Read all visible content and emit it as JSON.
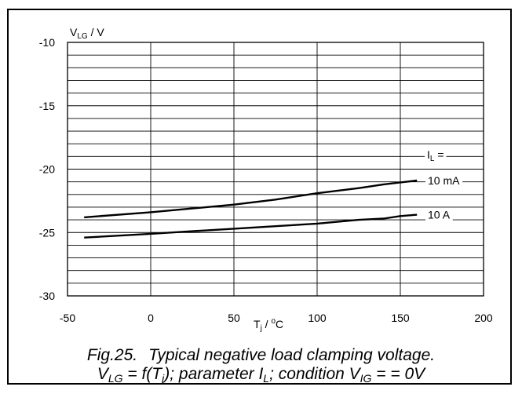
{
  "chart_data": {
    "type": "line",
    "xlim": [
      -50,
      200
    ],
    "ylim": [
      -30,
      -10
    ],
    "xticks": [
      "-50",
      "0",
      "50",
      "100",
      "150",
      "200"
    ],
    "yticks": [
      "-10",
      "-15",
      "-20",
      "-25",
      "-30"
    ],
    "ylabel": {
      "main": "V",
      "sub": "LG",
      "rest": " / V"
    },
    "xlabel": {
      "main": "T",
      "sub": "j",
      "rest": " / ",
      "sup": "o",
      "unit": "C"
    },
    "legend": {
      "title": "I",
      "title_sub": "L",
      "title_rest": " ="
    },
    "grid": {
      "vertical": true,
      "horizontal_minor_step": 1
    },
    "series": [
      {
        "name": "10 mA",
        "x": [
          -40,
          0,
          25,
          50,
          75,
          100,
          125,
          140,
          160
        ],
        "y": [
          -23.8,
          -23.4,
          -23.1,
          -22.8,
          -22.4,
          -21.9,
          -21.5,
          -21.2,
          -20.9
        ]
      },
      {
        "name": "10 A",
        "x": [
          -40,
          0,
          25,
          50,
          75,
          100,
          125,
          140,
          150,
          160
        ],
        "y": [
          -25.4,
          -25.1,
          -24.9,
          -24.7,
          -24.5,
          -24.3,
          -24.0,
          -23.9,
          -23.7,
          -23.6
        ]
      }
    ]
  },
  "caption": {
    "fig_number": "Fig.25.",
    "title": "Typical negative load clamping voltage.",
    "line2": {
      "v": "V",
      "v_sub": "LG",
      "eq": " = f(T",
      "t_sub": "j",
      "param": "); parameter I",
      "i_sub": "L",
      "cond": "; condition V",
      "vig_sub": "IG",
      "end": " = = 0V"
    }
  }
}
